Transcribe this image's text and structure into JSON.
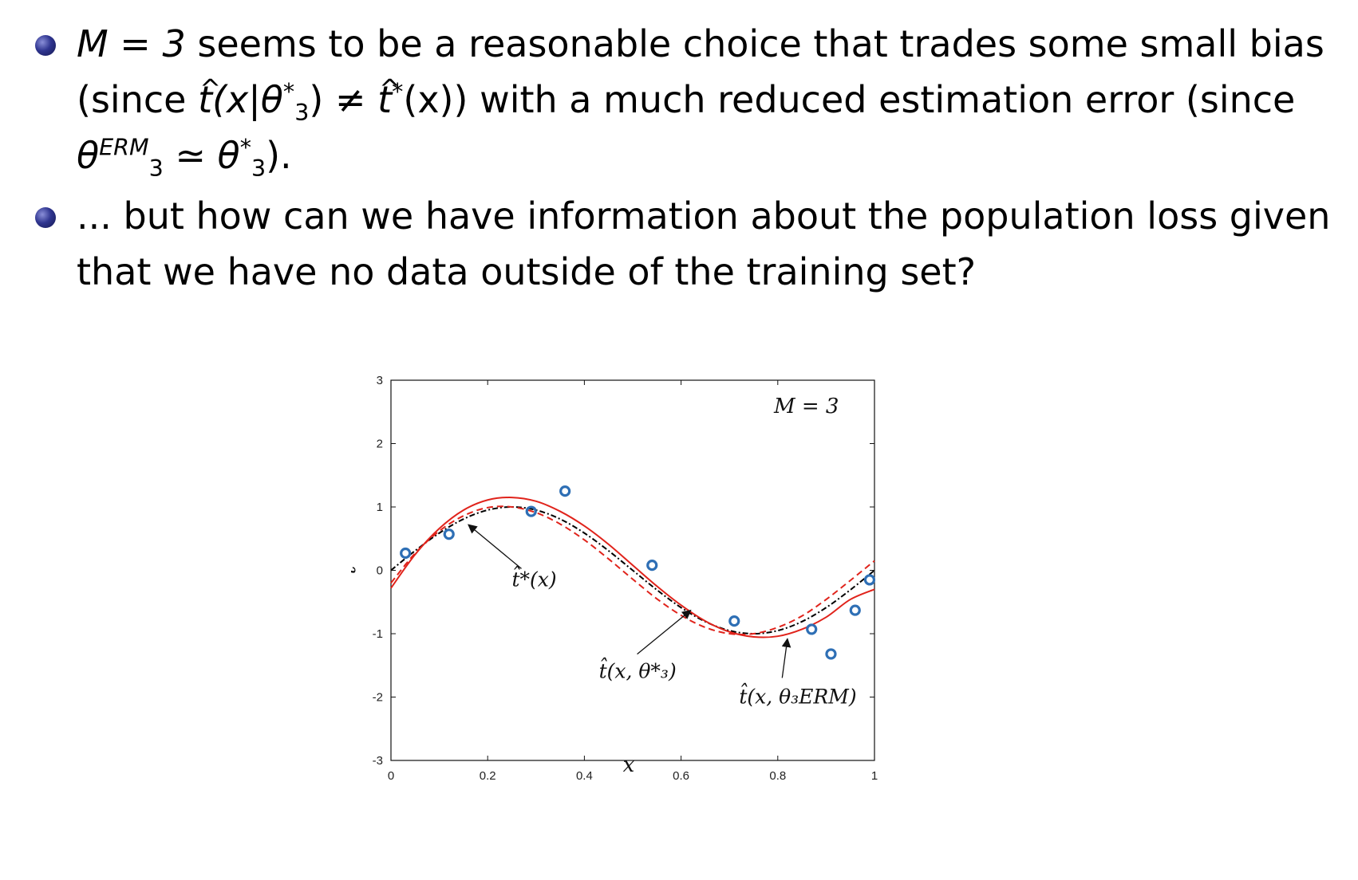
{
  "bullets": [
    {
      "m_eq": "M = 3",
      "text1": " seems to be a reasonable choice that trades some small bias",
      "text2a": "(since ",
      "expr_a": "t(x|θ",
      "sub_a": "3",
      "sup_a": "*",
      "text2b": ") ≠ ",
      "expr_b": "t",
      "sup_b": "*",
      "text2c": "(x)) with a much reduced estimation error (since",
      "theta": "θ",
      "sub_erm": "3",
      "sup_erm": "ERM",
      "text3a": " ≃ θ",
      "sub_c": "3",
      "sup_c": "*",
      "text3b": ")."
    },
    {
      "line1": "... but how can we have information about the population loss given",
      "line2": "that we have no data outside of the training set?"
    }
  ],
  "chart_data": {
    "type": "line",
    "title": "M = 3",
    "xlabel": "x",
    "ylabel": "t",
    "xlim": [
      0,
      1
    ],
    "ylim": [
      -3,
      3
    ],
    "xticks": [
      "0",
      "0.2",
      "0.4",
      "0.6",
      "0.8",
      "1"
    ],
    "yticks": [
      "3",
      "2",
      "1",
      "0",
      "-1",
      "-2",
      "-3"
    ],
    "points": {
      "x": [
        0.03,
        0.12,
        0.29,
        0.36,
        0.54,
        0.71,
        0.87,
        0.91,
        0.96,
        0.99
      ],
      "y": [
        0.27,
        0.57,
        0.93,
        1.25,
        0.08,
        -0.8,
        -0.93,
        -1.32,
        -0.63,
        -0.15
      ],
      "color": "#2e6fb5"
    },
    "series": [
      {
        "x": [
          0,
          0.05,
          0.1,
          0.15,
          0.2,
          0.25,
          0.3,
          0.35,
          0.4,
          0.45,
          0.5,
          0.55,
          0.6,
          0.65,
          0.7,
          0.75,
          0.8,
          0.85,
          0.9,
          0.95,
          1
        ],
        "y": [
          0,
          0.309,
          0.588,
          0.809,
          0.951,
          1,
          0.951,
          0.809,
          0.588,
          0.309,
          0,
          -0.309,
          -0.588,
          -0.809,
          -0.951,
          -1,
          -0.951,
          -0.809,
          -0.588,
          -0.309,
          0
        ],
        "color": "#000000",
        "style": "dashdot"
      },
      {
        "x": [
          0,
          0.05,
          0.1,
          0.15,
          0.2,
          0.25,
          0.3,
          0.35,
          0.4,
          0.45,
          0.5,
          0.55,
          0.6,
          0.65,
          0.7,
          0.75,
          0.8,
          0.85,
          0.9,
          0.95,
          1
        ],
        "y": [
          -0.2,
          0.27,
          0.62,
          0.86,
          0.99,
          1.0,
          0.91,
          0.73,
          0.48,
          0.18,
          -0.14,
          -0.45,
          -0.71,
          -0.9,
          -1.0,
          -1.0,
          -0.9,
          -0.72,
          -0.46,
          -0.16,
          0.15
        ],
        "color": "#e0231b",
        "style": "dashed"
      },
      {
        "x": [
          0,
          0.05,
          0.1,
          0.15,
          0.2,
          0.25,
          0.3,
          0.35,
          0.4,
          0.45,
          0.5,
          0.55,
          0.6,
          0.65,
          0.7,
          0.75,
          0.8,
          0.85,
          0.9,
          0.95,
          1
        ],
        "y": [
          -0.28,
          0.25,
          0.66,
          0.95,
          1.11,
          1.15,
          1.09,
          0.93,
          0.7,
          0.41,
          0.08,
          -0.25,
          -0.55,
          -0.8,
          -0.97,
          -1.05,
          -1.04,
          -0.93,
          -0.74,
          -0.46,
          -0.3
        ],
        "color": "#e0231b",
        "style": "solid"
      }
    ],
    "annotations": [
      {
        "text": "t̂*(x)",
        "x": 0.25,
        "y": -0.25,
        "arrow_to": [
          0.16,
          0.72
        ]
      },
      {
        "text": "t̂(x, θ*₃)",
        "x": 0.43,
        "y": -1.7,
        "arrow_to": [
          0.62,
          -0.63
        ]
      },
      {
        "text": "t̂(x, θ₃ERM)",
        "x": 0.72,
        "y": -2.1,
        "arrow_to": [
          0.82,
          -1.08
        ]
      }
    ]
  }
}
